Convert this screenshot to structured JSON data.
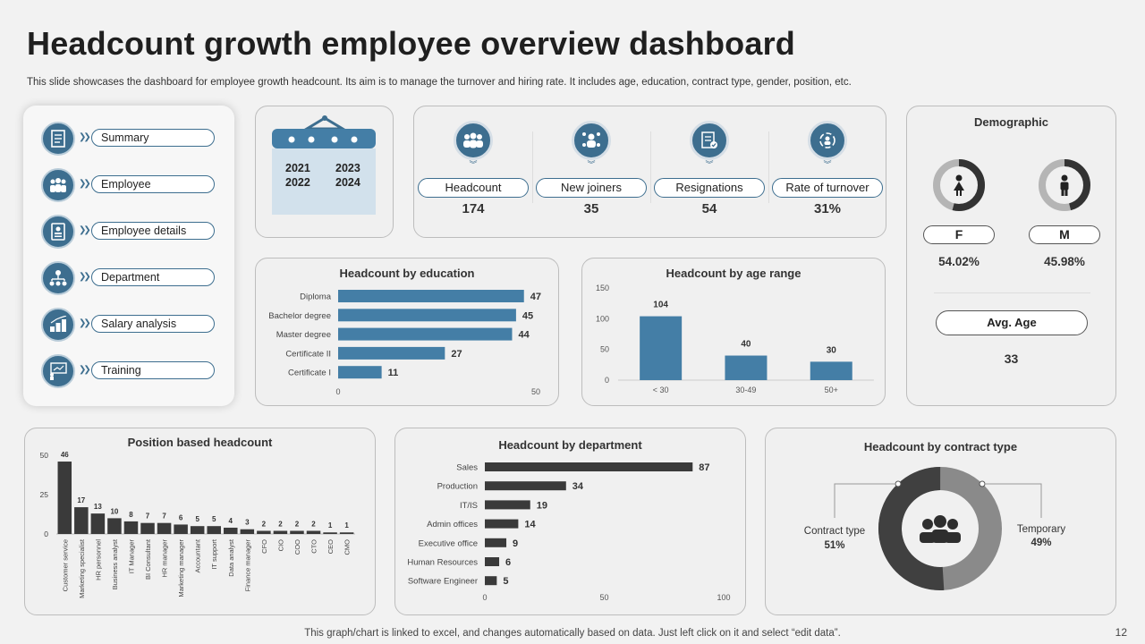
{
  "page": {
    "title": "Headcount growth employee overview dashboard",
    "subtitle": "This slide showcases the dashboard for employee growth headcount. Its aim is to manage the turnover and hiring rate. It includes age, education, contract type, gender, position, etc.",
    "footer": "This graph/chart is linked to excel, and changes automatically based on data. Just left click on it and select “edit data”.",
    "page_number": "12"
  },
  "nav": {
    "items": [
      {
        "label": "Summary",
        "icon": "document-icon"
      },
      {
        "label": "Employee",
        "icon": "people-icon"
      },
      {
        "label": "Employee details",
        "icon": "id-card-icon"
      },
      {
        "label": "Department",
        "icon": "org-chart-icon"
      },
      {
        "label": "Salary analysis",
        "icon": "money-icon"
      },
      {
        "label": "Training",
        "icon": "presentation-icon"
      }
    ]
  },
  "calendar": {
    "years": [
      "2021",
      "2023",
      "2022",
      "2024"
    ]
  },
  "kpis": [
    {
      "label": "Headcount",
      "value": "174",
      "icon": "group-icon"
    },
    {
      "label": "New joiners",
      "value": "35",
      "icon": "new-joiners-icon"
    },
    {
      "label": "Resignations",
      "value": "54",
      "icon": "resignation-icon"
    },
    {
      "label": "Rate of turnover",
      "value": "31%",
      "icon": "turnover-icon"
    }
  ],
  "demographic": {
    "title": "Demographic",
    "female": {
      "label": "F",
      "value": "54.02%",
      "fraction": 0.5402
    },
    "male": {
      "label": "M",
      "value": "45.98%",
      "fraction": 0.4598
    },
    "avg_age_label": "Avg. Age",
    "avg_age_value": "33"
  },
  "colors": {
    "accent": "#3d6e8f",
    "bar_blue": "#447ea6",
    "dark": "#3a3a3a",
    "grey": "#8a8a8a"
  },
  "chart_data": [
    {
      "id": "education",
      "type": "bar",
      "orientation": "horizontal",
      "title": "Headcount by education",
      "categories": [
        "Diploma",
        "Bachelor degree",
        "Master degree",
        "Certificate II",
        "Certificate I"
      ],
      "values": [
        47,
        45,
        44,
        27,
        11
      ],
      "xlim": [
        0,
        50
      ],
      "ticks": [
        "0",
        "50"
      ]
    },
    {
      "id": "age",
      "type": "bar",
      "title": "Headcount by age range",
      "categories": [
        "< 30",
        "30-49",
        "50+"
      ],
      "values": [
        104,
        40,
        30
      ],
      "ylim": [
        0,
        150
      ],
      "ticks": [
        "0",
        "50",
        "100",
        "150"
      ]
    },
    {
      "id": "position",
      "type": "bar",
      "title": "Position based headcount",
      "categories": [
        "Customer service",
        "Marketing specialist",
        "HR personnel",
        "Business analyst",
        "IT Manager",
        "BI Consultant",
        "HR manager",
        "Marketing manager",
        "Accountant",
        "IT support",
        "Data analyst",
        "Finance manager",
        "CFO",
        "CIO",
        "COO",
        "CTO",
        "CEO",
        "CMO"
      ],
      "values": [
        46,
        17,
        13,
        10,
        8,
        7,
        7,
        6,
        5,
        5,
        4,
        3,
        2,
        2,
        2,
        2,
        1,
        1
      ],
      "ylim": [
        0,
        50
      ],
      "ticks": [
        "0",
        "25",
        "50"
      ]
    },
    {
      "id": "department",
      "type": "bar",
      "orientation": "horizontal",
      "title": "Headcount by department",
      "categories": [
        "Sales",
        "Production",
        "IT/IS",
        "Admin offices",
        "Executive office",
        "Human Resources",
        "Software Engineer"
      ],
      "values": [
        87,
        34,
        19,
        14,
        9,
        6,
        5
      ],
      "xlim": [
        0,
        100
      ],
      "ticks": [
        "0",
        "50",
        "100"
      ]
    },
    {
      "id": "contract",
      "type": "pie",
      "title": "Headcount by contract type",
      "slices": [
        {
          "label": "Contract type",
          "value": 51,
          "display": "51%"
        },
        {
          "label": "Temporary",
          "value": 49,
          "display": "49%"
        }
      ]
    }
  ]
}
